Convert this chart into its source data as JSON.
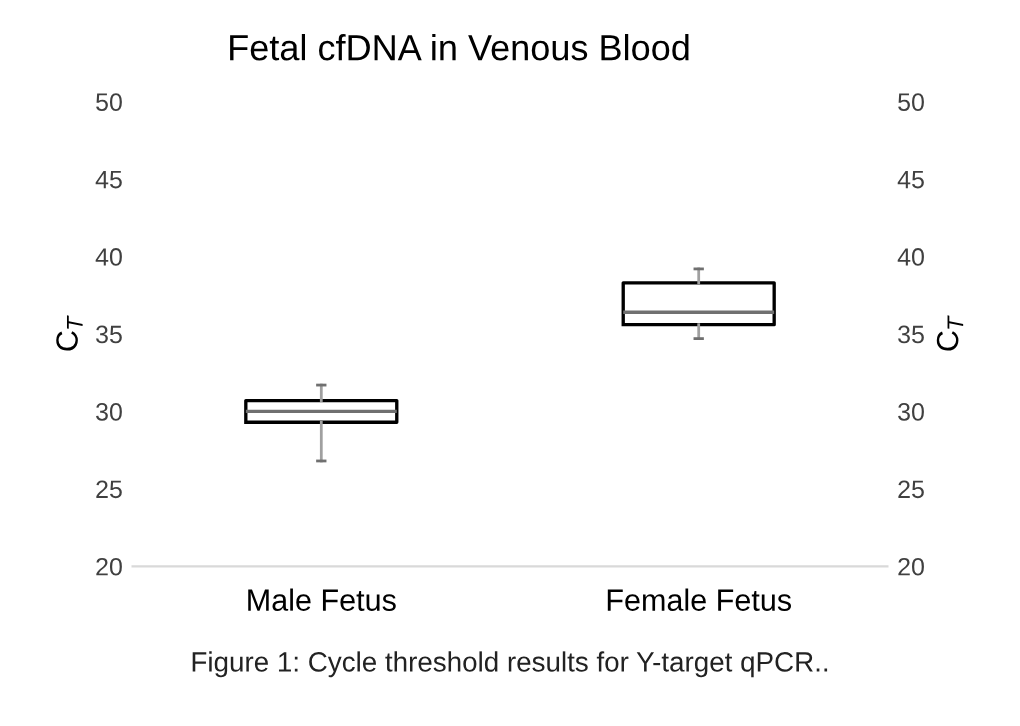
{
  "chart_data": {
    "type": "box",
    "title": "Fetal cfDNA in Venous Blood",
    "categories": [
      "Male Fetus",
      "Female Fetus"
    ],
    "boxes": [
      {
        "low": 26.8,
        "q1": 29.3,
        "median": 30.0,
        "q3": 30.7,
        "high": 31.7
      },
      {
        "low": 34.7,
        "q1": 35.6,
        "median": 36.4,
        "q3": 38.3,
        "high": 39.2
      }
    ],
    "color": "#000000",
    "ylabel": "C$_{T}$",
    "y2label": "C$_{T}$",
    "ylim": [
      20,
      50
    ],
    "yticks": [
      20,
      25,
      30,
      35,
      40,
      45,
      50
    ],
    "y2lim": [
      20,
      50
    ],
    "y2ticks": [
      20,
      25,
      30,
      35,
      40,
      45,
      50
    ],
    "grid": false,
    "annotations": [
      "Figure 1: Cycle threshold results for Y-target qPCR.."
    ]
  }
}
